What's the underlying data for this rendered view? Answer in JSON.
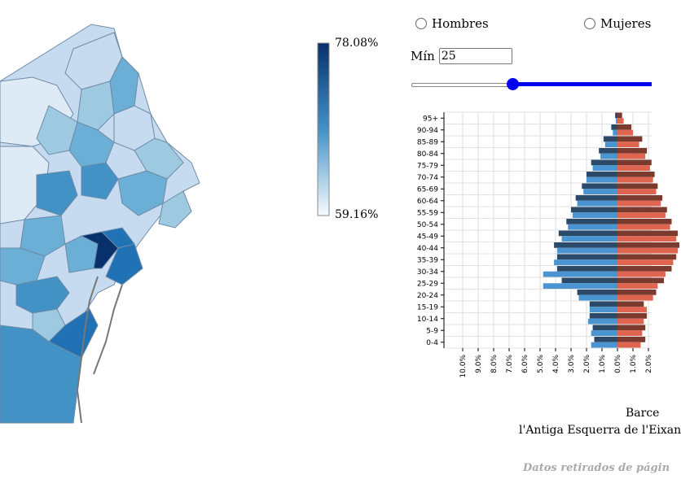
{
  "legend": {
    "max_label": "78.08%",
    "min_label": "59.16%",
    "color_high": "#08306b",
    "color_low": "#f7fbff"
  },
  "controls": {
    "radio_men": "Hombres",
    "radio_women": "Mujeres",
    "min_label": "Mín",
    "min_value": "25",
    "slider_value": 25,
    "accent_color": "#0000ee"
  },
  "chart_data": {
    "type": "bar",
    "orientation": "horizontal-population-pyramid",
    "categories": [
      "0-4",
      "5-9",
      "10-14",
      "15-19",
      "20-24",
      "25-29",
      "30-34",
      "35-39",
      "40-44",
      "45-49",
      "50-54",
      "55-59",
      "60-64",
      "65-69",
      "70-74",
      "75-79",
      "80-84",
      "85-89",
      "90-94",
      "95+"
    ],
    "series": [
      {
        "color": "#2b4a6a",
        "side": "left",
        "values": [
          1.5,
          1.6,
          1.8,
          1.8,
          2.6,
          3.6,
          3.9,
          3.9,
          4.1,
          3.8,
          3.3,
          3.0,
          2.7,
          2.3,
          2.0,
          1.7,
          1.2,
          0.9,
          0.4,
          0.15
        ]
      },
      {
        "color": "#4b94d2",
        "side": "left",
        "values": [
          1.7,
          1.7,
          1.9,
          1.8,
          2.5,
          4.8,
          4.8,
          4.1,
          3.9,
          3.6,
          3.2,
          2.9,
          2.6,
          2.2,
          2.0,
          1.6,
          1.1,
          0.8,
          0.3,
          0.1
        ]
      },
      {
        "color": "#7b3a2e",
        "side": "right",
        "values": [
          1.8,
          1.8,
          1.9,
          1.7,
          2.5,
          3.0,
          3.5,
          3.8,
          4.0,
          3.9,
          3.5,
          3.2,
          2.9,
          2.6,
          2.4,
          2.2,
          1.9,
          1.6,
          0.9,
          0.3
        ]
      },
      {
        "color": "#e06550",
        "side": "right",
        "values": [
          1.5,
          1.6,
          1.7,
          1.9,
          2.3,
          2.6,
          3.1,
          3.6,
          3.9,
          3.8,
          3.4,
          3.1,
          2.8,
          2.5,
          2.3,
          2.1,
          1.8,
          1.4,
          1.0,
          0.4
        ]
      }
    ],
    "x_ticks": [
      "10.0%",
      "9.0%",
      "8.0%",
      "7.0%",
      "6.0%",
      "5.0%",
      "4.0%",
      "3.0%",
      "2.0%",
      "1.0%",
      "0.0%",
      "1.0%",
      "2.0%"
    ],
    "grid": true
  },
  "captions": {
    "line1": "Barce",
    "line2": "l'Antiga Esquerra de l'Eixan",
    "source": "Datos retirados de págin"
  }
}
